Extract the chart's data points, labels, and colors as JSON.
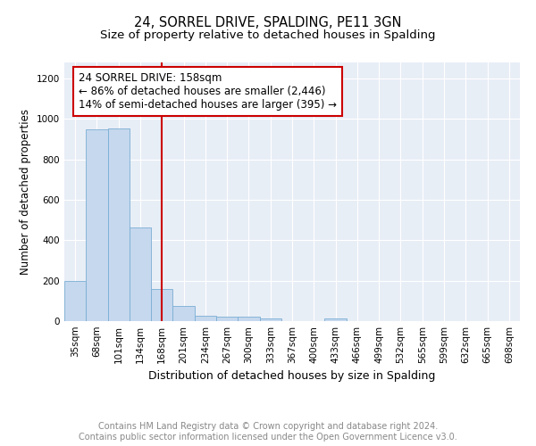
{
  "title1": "24, SORREL DRIVE, SPALDING, PE11 3GN",
  "title2": "Size of property relative to detached houses in Spalding",
  "xlabel": "Distribution of detached houses by size in Spalding",
  "ylabel": "Number of detached properties",
  "categories": [
    "35sqm",
    "68sqm",
    "101sqm",
    "134sqm",
    "168sqm",
    "201sqm",
    "234sqm",
    "267sqm",
    "300sqm",
    "333sqm",
    "367sqm",
    "400sqm",
    "433sqm",
    "466sqm",
    "499sqm",
    "532sqm",
    "565sqm",
    "599sqm",
    "632sqm",
    "665sqm",
    "698sqm"
  ],
  "values": [
    200,
    950,
    955,
    465,
    160,
    75,
    28,
    22,
    20,
    12,
    0,
    0,
    12,
    0,
    0,
    0,
    0,
    0,
    0,
    0,
    0
  ],
  "bar_color": "#c5d8ee",
  "bar_edge_color": "#7aaed4",
  "vline_color": "#cc0000",
  "annotation_line1": "24 SORREL DRIVE: 158sqm",
  "annotation_line2": "← 86% of detached houses are smaller (2,446)",
  "annotation_line3": "14% of semi-detached houses are larger (395) →",
  "annotation_box_color": "#ffffff",
  "annotation_box_edge": "#cc0000",
  "ylim": [
    0,
    1280
  ],
  "yticks": [
    0,
    200,
    400,
    600,
    800,
    1000,
    1200
  ],
  "background_color": "#e8eef6",
  "grid_color": "#ffffff",
  "footer_text": "Contains HM Land Registry data © Crown copyright and database right 2024.\nContains public sector information licensed under the Open Government Licence v3.0.",
  "title1_fontsize": 10.5,
  "title2_fontsize": 9.5,
  "xlabel_fontsize": 9,
  "ylabel_fontsize": 8.5,
  "tick_fontsize": 7.5,
  "annotation_fontsize": 8.5,
  "footer_fontsize": 7
}
